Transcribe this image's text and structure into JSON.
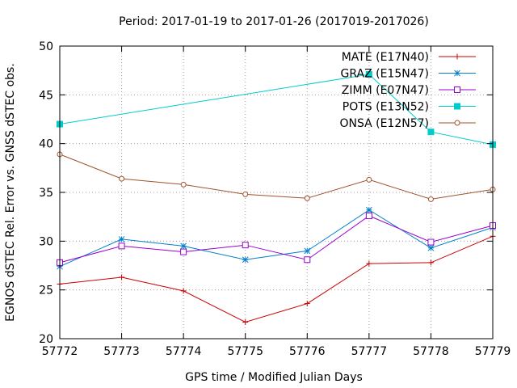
{
  "chart_data": {
    "type": "line",
    "title": "Period: 2017-01-19 to 2017-01-26 (2017019-2017026)",
    "xlabel": "GPS time / Modified Julian Days",
    "ylabel": "EGNOS dSTEC Rel. Error vs. GNSS dSTEC obs.",
    "xlim": [
      57772,
      57779
    ],
    "ylim": [
      20,
      50
    ],
    "x": [
      57772,
      57773,
      57774,
      57775,
      57776,
      57777,
      57778,
      57779
    ],
    "xticks": [
      "57772",
      "57773",
      "57774",
      "57775",
      "57776",
      "57777",
      "57778",
      "57779"
    ],
    "yticks": [
      "20",
      "25",
      "30",
      "35",
      "40",
      "45",
      "50"
    ],
    "grid": true,
    "legend_position": "top-right",
    "series": [
      {
        "name": "MATE (E17N40)",
        "color": "#cc0000",
        "marker": "plus",
        "values": [
          25.6,
          26.3,
          24.9,
          21.7,
          23.6,
          27.7,
          27.8,
          30.5
        ]
      },
      {
        "name": "GRAZ (E15N47)",
        "color": "#0080cc",
        "marker": "star",
        "values": [
          27.4,
          30.2,
          29.5,
          28.1,
          29.0,
          33.2,
          29.3,
          31.4
        ]
      },
      {
        "name": "ZIMM (E07N47)",
        "color": "#9900cc",
        "marker": "open-square",
        "values": [
          27.8,
          29.5,
          28.9,
          29.6,
          28.1,
          32.6,
          29.9,
          31.6
        ]
      },
      {
        "name": "POTS (E13N52)",
        "color": "#00cccc",
        "marker": "filled-square",
        "values": [
          42.0,
          null,
          null,
          null,
          null,
          47.1,
          41.2,
          39.9
        ]
      },
      {
        "name": "ONSA (E12N57)",
        "color": "#a0522d",
        "marker": "open-circle",
        "values": [
          38.9,
          36.4,
          35.8,
          34.8,
          34.4,
          36.3,
          34.3,
          35.3
        ]
      }
    ]
  }
}
